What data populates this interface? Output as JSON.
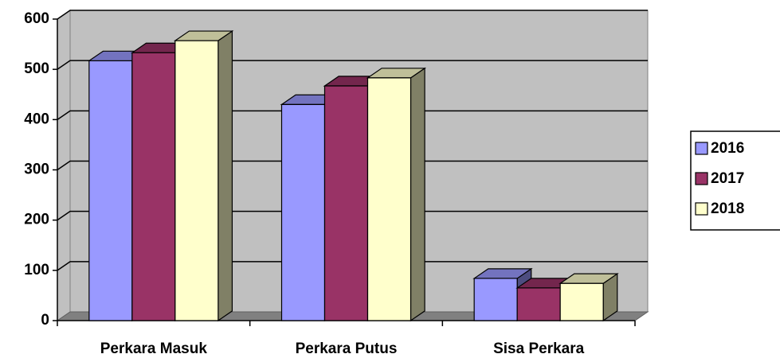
{
  "chart_data": {
    "type": "bar",
    "categories": [
      "Perkara Masuk",
      "Perkara Putus",
      "Sisa Perkara"
    ],
    "series": [
      {
        "name": "2016",
        "color": "#9999ff",
        "values": [
          517,
          430,
          84
        ]
      },
      {
        "name": "2017",
        "color": "#993366",
        "values": [
          533,
          467,
          65
        ]
      },
      {
        "name": "2018",
        "color": "#ffffcc",
        "values": [
          557,
          483,
          74
        ]
      }
    ],
    "ylim": [
      0,
      600
    ],
    "yticks": [
      0,
      100,
      200,
      300,
      400,
      500,
      600
    ],
    "grid": true,
    "legend": "right"
  }
}
